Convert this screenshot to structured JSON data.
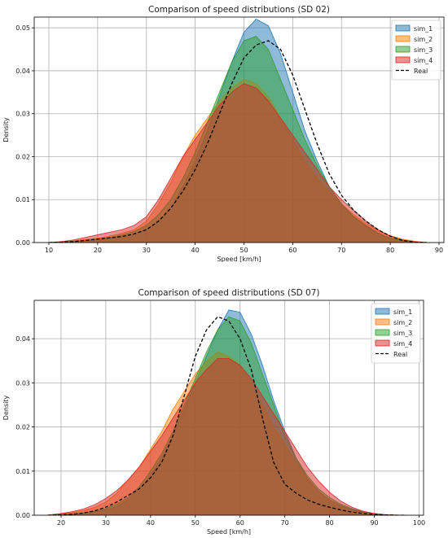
{
  "chart_data": [
    {
      "type": "area",
      "title": "Comparison of speed distributions (SD 02)",
      "xlabel": "Speed [km/h]",
      "ylabel": "Density",
      "xlim": [
        7,
        91
      ],
      "ylim": [
        0,
        0.0525
      ],
      "xticks": [
        10,
        20,
        30,
        40,
        50,
        60,
        70,
        80,
        90
      ],
      "yticks": [
        0.0,
        0.01,
        0.02,
        0.03,
        0.04,
        0.05
      ],
      "ytick_labels": [
        "0.00",
        "0.01",
        "0.02",
        "0.03",
        "0.04",
        "0.05"
      ],
      "grid": true,
      "legend_position": "top-right",
      "x": [
        10,
        12.5,
        15,
        17.5,
        20,
        22.5,
        25,
        27.5,
        30,
        32.5,
        35,
        37.5,
        40,
        42.5,
        45,
        47.5,
        50,
        52.5,
        55,
        57.5,
        60,
        62.5,
        65,
        67.5,
        70,
        72.5,
        75,
        77.5,
        80,
        82.5,
        85,
        87.5
      ],
      "series": [
        {
          "name": "sim_1",
          "color": "#1f77b4",
          "fill": true,
          "values": [
            0,
            0.0001,
            0.0002,
            0.0004,
            0.0007,
            0.001,
            0.0014,
            0.002,
            0.003,
            0.005,
            0.008,
            0.013,
            0.019,
            0.026,
            0.034,
            0.042,
            0.049,
            0.052,
            0.0505,
            0.044,
            0.035,
            0.026,
            0.019,
            0.013,
            0.009,
            0.006,
            0.004,
            0.0022,
            0.001,
            0.0005,
            0.0002,
            0
          ]
        },
        {
          "name": "sim_2",
          "color": "#ff7f0e",
          "fill": true,
          "values": [
            0,
            0.0002,
            0.0004,
            0.0007,
            0.001,
            0.0015,
            0.0022,
            0.003,
            0.005,
            0.009,
            0.014,
            0.02,
            0.025,
            0.029,
            0.033,
            0.036,
            0.038,
            0.037,
            0.034,
            0.029,
            0.024,
            0.019,
            0.015,
            0.012,
            0.009,
            0.0065,
            0.0045,
            0.0028,
            0.0016,
            0.0008,
            0.0003,
            0
          ]
        },
        {
          "name": "sim_3",
          "color": "#2ca02c",
          "fill": true,
          "values": [
            0,
            0.0001,
            0.0003,
            0.0005,
            0.0008,
            0.0012,
            0.0018,
            0.0026,
            0.004,
            0.0065,
            0.01,
            0.015,
            0.021,
            0.028,
            0.035,
            0.042,
            0.047,
            0.048,
            0.045,
            0.038,
            0.031,
            0.024,
            0.018,
            0.013,
            0.009,
            0.006,
            0.004,
            0.0022,
            0.001,
            0.0004,
            0.0001,
            0
          ]
        },
        {
          "name": "sim_4",
          "color": "#d62728",
          "fill": true,
          "values": [
            0,
            0.0002,
            0.0006,
            0.0012,
            0.0018,
            0.0024,
            0.003,
            0.004,
            0.006,
            0.01,
            0.015,
            0.02,
            0.024,
            0.028,
            0.032,
            0.035,
            0.037,
            0.036,
            0.033,
            0.029,
            0.025,
            0.021,
            0.017,
            0.013,
            0.01,
            0.0075,
            0.005,
            0.003,
            0.0015,
            0.0006,
            0.0002,
            0
          ]
        },
        {
          "name": "Real",
          "color": "#000000",
          "fill": false,
          "dashed": true,
          "values": [
            0,
            0.0001,
            0.0002,
            0.0005,
            0.0008,
            0.0011,
            0.0014,
            0.002,
            0.003,
            0.005,
            0.008,
            0.012,
            0.017,
            0.023,
            0.03,
            0.037,
            0.043,
            0.046,
            0.047,
            0.045,
            0.039,
            0.031,
            0.023,
            0.016,
            0.011,
            0.0075,
            0.005,
            0.003,
            0.0015,
            0.0005,
            0.0001,
            0
          ]
        }
      ]
    },
    {
      "type": "area",
      "title": "Comparison of speed distributions (SD 07)",
      "xlabel": "Speed [km/h]",
      "ylabel": "Density",
      "xlim": [
        14,
        101
      ],
      "ylim": [
        0,
        0.0487
      ],
      "xticks": [
        20,
        30,
        40,
        50,
        60,
        70,
        80,
        90,
        100
      ],
      "yticks": [
        0.0,
        0.01,
        0.02,
        0.03,
        0.04
      ],
      "ytick_labels": [
        "0.00",
        "0.01",
        "0.02",
        "0.03",
        "0.04"
      ],
      "grid": true,
      "legend_position": "top-right",
      "x": [
        17,
        20,
        22.5,
        25,
        27.5,
        30,
        32.5,
        35,
        37.5,
        40,
        42.5,
        45,
        47.5,
        50,
        52.5,
        55,
        57.5,
        60,
        62.5,
        65,
        67.5,
        70,
        72.5,
        75,
        77.5,
        80,
        82.5,
        85,
        87.5,
        90,
        92.5,
        95,
        97
      ],
      "series": [
        {
          "name": "sim_1",
          "color": "#1f77b4",
          "fill": true,
          "values": [
            0,
            0.0001,
            0.0002,
            0.0004,
            0.0007,
            0.0012,
            0.002,
            0.0035,
            0.006,
            0.009,
            0.013,
            0.018,
            0.024,
            0.03,
            0.036,
            0.042,
            0.0465,
            0.046,
            0.041,
            0.034,
            0.026,
            0.019,
            0.013,
            0.0085,
            0.0055,
            0.0035,
            0.0022,
            0.0013,
            0.0007,
            0.0003,
            0.0001,
            0,
            0
          ]
        },
        {
          "name": "sim_2",
          "color": "#ff7f0e",
          "fill": true,
          "values": [
            0,
            0.0003,
            0.0006,
            0.001,
            0.0018,
            0.003,
            0.005,
            0.008,
            0.011,
            0.015,
            0.019,
            0.024,
            0.028,
            0.032,
            0.035,
            0.037,
            0.036,
            0.034,
            0.03,
            0.025,
            0.02,
            0.016,
            0.012,
            0.0085,
            0.0055,
            0.0035,
            0.002,
            0.0011,
            0.0005,
            0.0002,
            0.0001,
            0,
            0
          ]
        },
        {
          "name": "sim_3",
          "color": "#2ca02c",
          "fill": true,
          "values": [
            0,
            0.0001,
            0.0003,
            0.0005,
            0.0009,
            0.0015,
            0.0025,
            0.004,
            0.0065,
            0.01,
            0.014,
            0.019,
            0.025,
            0.031,
            0.037,
            0.042,
            0.045,
            0.044,
            0.039,
            0.032,
            0.025,
            0.018,
            0.013,
            0.009,
            0.006,
            0.004,
            0.0025,
            0.0015,
            0.0008,
            0.0003,
            0.0001,
            0,
            0
          ]
        },
        {
          "name": "sim_4",
          "color": "#d62728",
          "fill": true,
          "values": [
            0,
            0.0004,
            0.0008,
            0.0014,
            0.0024,
            0.0038,
            0.0056,
            0.008,
            0.011,
            0.0145,
            0.018,
            0.022,
            0.026,
            0.03,
            0.033,
            0.0355,
            0.0355,
            0.034,
            0.031,
            0.027,
            0.023,
            0.019,
            0.015,
            0.011,
            0.0078,
            0.0052,
            0.0032,
            0.0018,
            0.0009,
            0.0004,
            0.0001,
            0,
            0
          ]
        },
        {
          "name": "Real",
          "color": "#000000",
          "fill": false,
          "dashed": true,
          "values": [
            0,
            0.0001,
            0.0002,
            0.0005,
            0.001,
            0.0018,
            0.003,
            0.0045,
            0.006,
            0.0085,
            0.012,
            0.018,
            0.027,
            0.036,
            0.042,
            0.045,
            0.044,
            0.04,
            0.033,
            0.022,
            0.012,
            0.007,
            0.005,
            0.0035,
            0.0025,
            0.0018,
            0.0012,
            0.0007,
            0.0004,
            0.0002,
            0.0001,
            0,
            0
          ]
        }
      ]
    }
  ]
}
